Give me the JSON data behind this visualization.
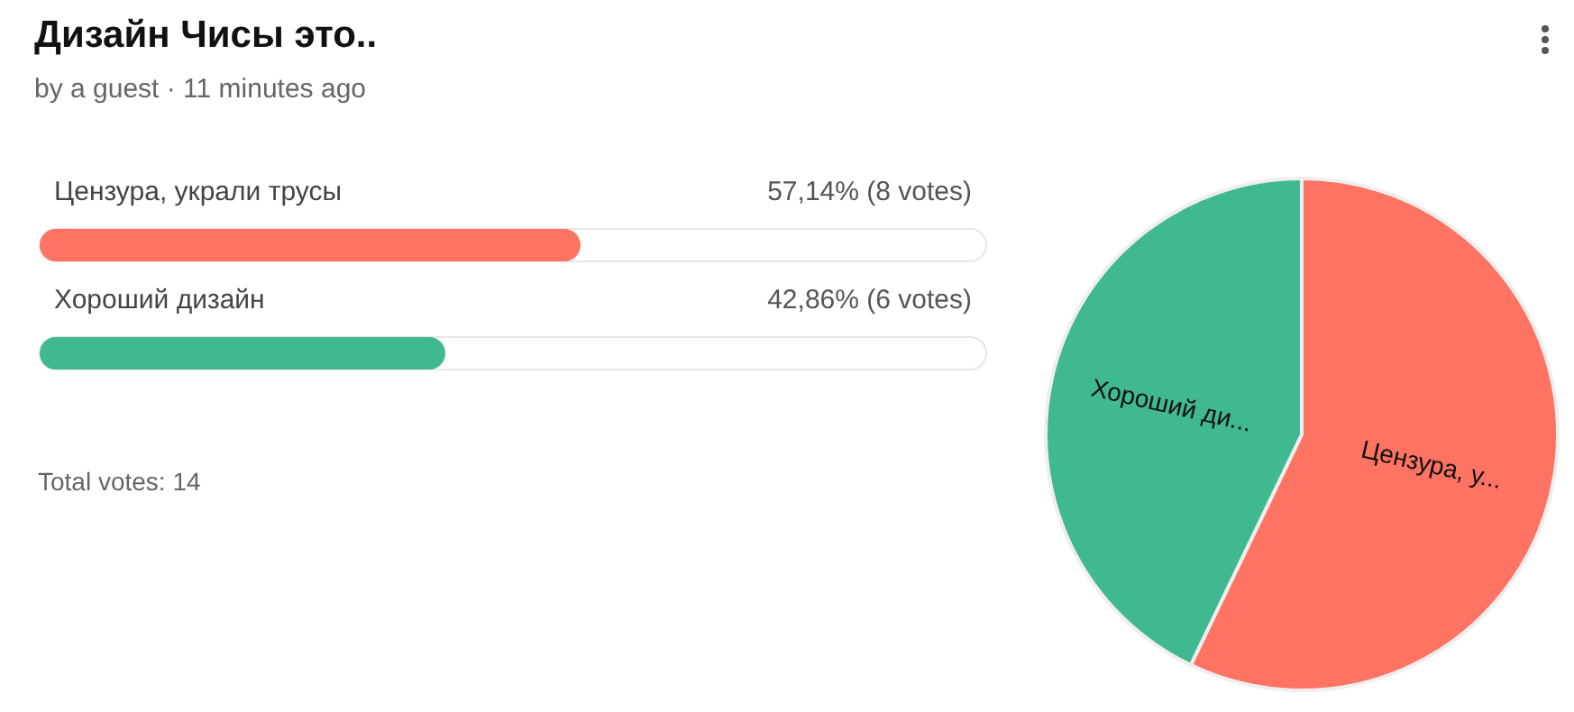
{
  "chart_data": [
    {
      "type": "bar",
      "orientation": "horizontal",
      "title": "Дизайн Чисы это..",
      "subtitle": "by a guest · 11 minutes ago",
      "categories": [
        "Цензура, украли трусы",
        "Хороший дизайн"
      ],
      "values": [
        57.14,
        42.86
      ],
      "colors": [
        "#ff7363",
        "#40b890"
      ],
      "value_labels": [
        "57,14% (8 votes)",
        "42,86% (6 votes)"
      ],
      "xlim": [
        0,
        100
      ],
      "tick_labels": false,
      "grid": false,
      "legend": false,
      "annotations": [
        "Total votes: 14"
      ]
    },
    {
      "type": "pie",
      "categories": [
        "Цензура, у...",
        "Хороший ди..."
      ],
      "values": [
        57.14,
        42.86
      ],
      "colors": [
        "#ff7363",
        "#40b890"
      ],
      "legend": false
    }
  ]
}
